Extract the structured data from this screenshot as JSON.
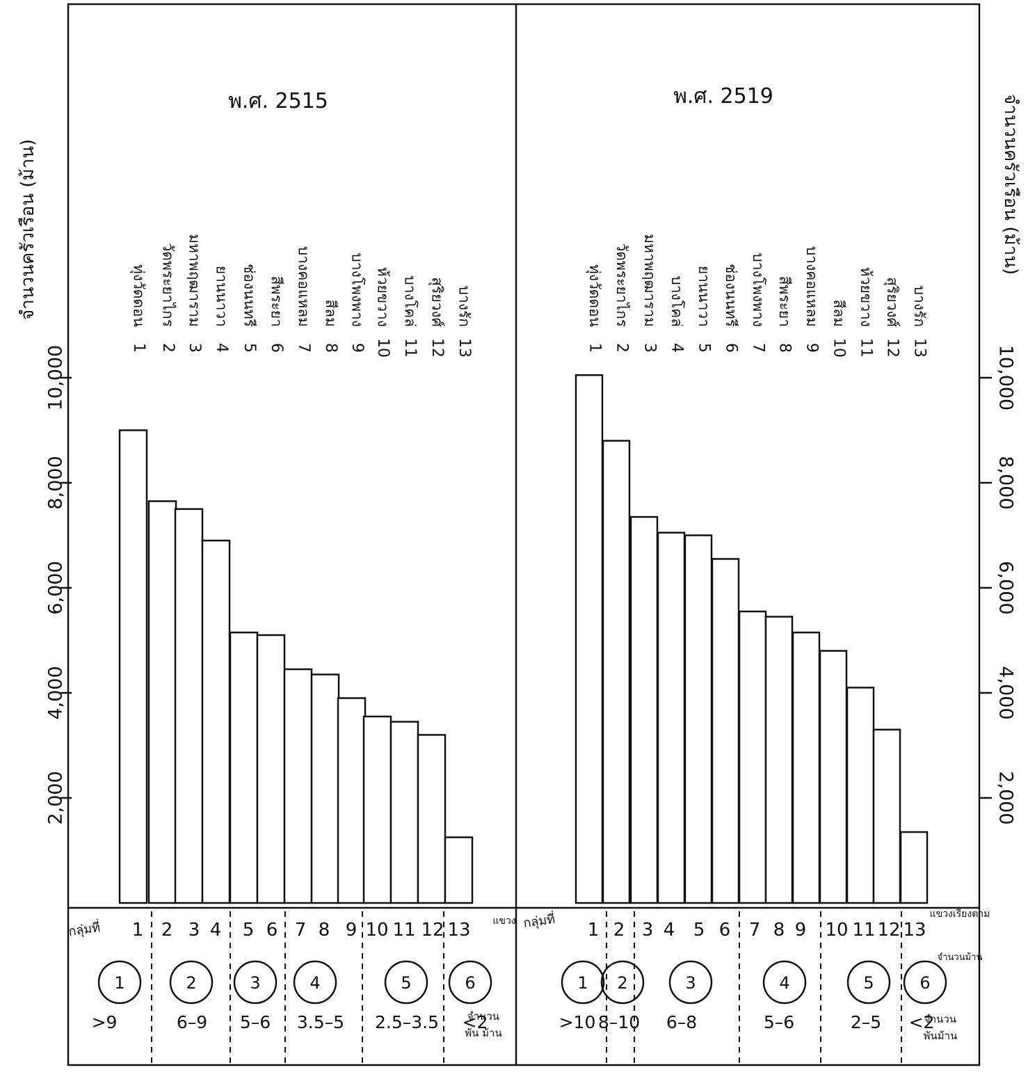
{
  "chart_data": [
    {
      "type": "bar",
      "title": "พ.ศ. 2515",
      "ylabel": "จำนวนครัวเรือน (ม้าน)",
      "ylim": [
        0,
        12000
      ],
      "yticks": [
        "2,000",
        "4,000",
        "6,000",
        "8,000",
        "10,000"
      ],
      "categories": [
        "1",
        "2",
        "3",
        "4",
        "5",
        "6",
        "7",
        "8",
        "9",
        "10",
        "11",
        "12",
        "13"
      ],
      "districts": [
        "ทุ่งวัดดอน",
        "วัดพระยาไกร",
        "มหาพฤฒาราม",
        "ยานนาวา",
        "ช่องนนทรี",
        "สีพระยา",
        "บางคอแหลม",
        "สีลม",
        "บางโพงพาง",
        "ห้วยขวาง",
        "บางโคล่",
        "สุริยวงศ์",
        "บางรัก"
      ],
      "values": [
        9000,
        7650,
        7500,
        6900,
        5150,
        5100,
        4450,
        4350,
        3900,
        3550,
        3450,
        3200,
        1250
      ],
      "strip_labels": [
        "1",
        "2",
        "3",
        "4",
        "5",
        "6",
        "7",
        "8",
        "9",
        "10",
        "11",
        "12",
        "13"
      ],
      "strip_unit": "แขวง",
      "groups": [
        {
          "number": "1",
          "range": ">9"
        },
        {
          "number": "2",
          "range": "6–9"
        },
        {
          "number": "3",
          "range": "5–6"
        },
        {
          "number": "4",
          "range": "3.5–5"
        },
        {
          "number": "5",
          "range": "2.5–3.5"
        },
        {
          "number": "6",
          "range": "<2"
        }
      ],
      "group_label": "กลุ่มที่",
      "range_unit_label": [
        "จำนวน",
        "พัน ม้าน"
      ]
    },
    {
      "type": "bar",
      "title": "พ.ศ. 2519",
      "ylabel": "จำนวนครัวเรือน (ม้าน)",
      "ylim": [
        0,
        12000
      ],
      "yticks": [
        "2,000",
        "4,000",
        "6,000",
        "8,000",
        "10,000"
      ],
      "categories": [
        "1",
        "2",
        "3",
        "4",
        "5",
        "6",
        "7",
        "8",
        "9",
        "10",
        "11",
        "12",
        "13"
      ],
      "districts": [
        "ทุ่งวัดดอน",
        "วัดพระยาไกร",
        "มหาพฤฒาราม",
        "บางโคล่",
        "ยานนาวา",
        "ช่องนนทรี",
        "บางโพงพาง",
        "สีพระยา",
        "บางคอแหลม",
        "สีลม",
        "ห้วยขวาง",
        "สุริยวงศ์",
        "บางรัก"
      ],
      "values": [
        10050,
        8800,
        7350,
        7050,
        7000,
        6550,
        5550,
        5450,
        5150,
        4800,
        4100,
        3300,
        1350
      ],
      "strip_labels": [
        "1",
        "2",
        "3",
        "4",
        "5",
        "6",
        "7",
        "8",
        "9",
        "10",
        "11",
        "12",
        "13"
      ],
      "strip_unit": "แขวงเรียงตาม",
      "groups": [
        {
          "number": "1",
          "range": ">10"
        },
        {
          "number": "2",
          "range": "8–10"
        },
        {
          "number": "3",
          "range": "6–8"
        },
        {
          "number": "4",
          "range": "5–6"
        },
        {
          "number": "5",
          "range": "2–5"
        },
        {
          "number": "6",
          "range": "<2"
        }
      ],
      "group_label": "กลุ่มที่",
      "group_unit_label": "จำนวนม้าน",
      "range_unit_label": [
        "จำนวน",
        "พันม้าน"
      ]
    }
  ]
}
